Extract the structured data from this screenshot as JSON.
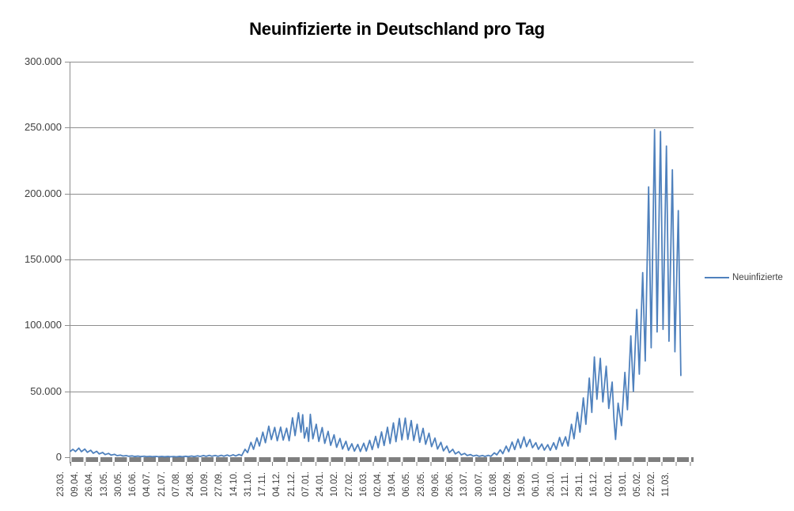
{
  "title": "Neuinfizierte in Deutschland pro Tag",
  "legend": {
    "series_label": "Neuinfizierte"
  },
  "colors": {
    "series": "#4F81BD",
    "gridline": "#8E8E8E",
    "axis_bar": "#7F7F7F",
    "tick_text": "#404040",
    "title_text": "#000000",
    "background": "#FFFFFF"
  },
  "y_axis": {
    "tick_labels": [
      "0",
      "50.000",
      "100.000",
      "150.000",
      "200.000",
      "250.000",
      "300.000"
    ],
    "tick_values": [
      0,
      50000,
      100000,
      150000,
      200000,
      250000,
      300000
    ]
  },
  "x_axis": {
    "tick_labels": [
      "23.03.",
      "09.04.",
      "26.04.",
      "13.05.",
      "30.05.",
      "16.06.",
      "04.07.",
      "21.07.",
      "07.08.",
      "24.08.",
      "10.09.",
      "27.09.",
      "14.10.",
      "31.10.",
      "17.11.",
      "04.12.",
      "21.12.",
      "07.01.",
      "24.01.",
      "10.02.",
      "27.02.",
      "16.03.",
      "02.04.",
      "19.04.",
      "06.05.",
      "23.05.",
      "09.06.",
      "26.06.",
      "13.07.",
      "30.07.",
      "16.08.",
      "02.09.",
      "19.09.",
      "06.10.",
      "26.10.",
      "12.11.",
      "29.11.",
      "16.12.",
      "02.01.",
      "19.01.",
      "05.02.",
      "22.02.",
      "11.03."
    ],
    "tick_interval_days": 17
  },
  "chart_data": {
    "type": "line",
    "title": "Neuinfizierte in Deutschland pro Tag",
    "xlabel": "",
    "ylabel": "",
    "x_unit": "day index, daily values from 23.03.2020 to 13.03.2022",
    "ylim": [
      0,
      300000
    ],
    "xlim_days": [
      0,
      735
    ],
    "grid": true,
    "legend_position": "right",
    "series": [
      {
        "name": "Neuinfizierte",
        "points": [
          [
            0,
            4500
          ],
          [
            3,
            6000
          ],
          [
            6,
            4300
          ],
          [
            10,
            6900
          ],
          [
            13,
            4200
          ],
          [
            17,
            6200
          ],
          [
            20,
            3700
          ],
          [
            24,
            5300
          ],
          [
            27,
            3000
          ],
          [
            31,
            4500
          ],
          [
            34,
            2500
          ],
          [
            38,
            3600
          ],
          [
            41,
            2000
          ],
          [
            45,
            2900
          ],
          [
            48,
            1600
          ],
          [
            52,
            2200
          ],
          [
            55,
            1200
          ],
          [
            59,
            1600
          ],
          [
            62,
            900
          ],
          [
            66,
            1200
          ],
          [
            69,
            700
          ],
          [
            73,
            1000
          ],
          [
            76,
            550
          ],
          [
            80,
            850
          ],
          [
            83,
            480
          ],
          [
            87,
            750
          ],
          [
            90,
            430
          ],
          [
            94,
            680
          ],
          [
            97,
            400
          ],
          [
            101,
            620
          ],
          [
            104,
            380
          ],
          [
            108,
            600
          ],
          [
            111,
            350
          ],
          [
            115,
            560
          ],
          [
            118,
            330
          ],
          [
            122,
            540
          ],
          [
            125,
            320
          ],
          [
            129,
            630
          ],
          [
            132,
            380
          ],
          [
            136,
            720
          ],
          [
            139,
            420
          ],
          [
            143,
            870
          ],
          [
            146,
            480
          ],
          [
            150,
            1050
          ],
          [
            153,
            570
          ],
          [
            157,
            1250
          ],
          [
            160,
            650
          ],
          [
            164,
            1400
          ],
          [
            167,
            720
          ],
          [
            171,
            1320
          ],
          [
            174,
            680
          ],
          [
            178,
            1450
          ],
          [
            181,
            750
          ],
          [
            185,
            1650
          ],
          [
            188,
            850
          ],
          [
            192,
            1850
          ],
          [
            195,
            950
          ],
          [
            199,
            2100
          ],
          [
            202,
            1150
          ],
          [
            206,
            6000
          ],
          [
            209,
            3500
          ],
          [
            213,
            11300
          ],
          [
            216,
            6000
          ],
          [
            220,
            14700
          ],
          [
            223,
            8500
          ],
          [
            227,
            19000
          ],
          [
            230,
            11000
          ],
          [
            234,
            23500
          ],
          [
            237,
            13400
          ],
          [
            241,
            22600
          ],
          [
            244,
            12500
          ],
          [
            248,
            22800
          ],
          [
            251,
            13000
          ],
          [
            255,
            22000
          ],
          [
            258,
            12500
          ],
          [
            262,
            29900
          ],
          [
            265,
            16400
          ],
          [
            269,
            33700
          ],
          [
            272,
            19000
          ],
          [
            274,
            32200
          ],
          [
            276,
            14500
          ],
          [
            279,
            22500
          ],
          [
            281,
            12000
          ],
          [
            283,
            32500
          ],
          [
            286,
            14000
          ],
          [
            290,
            25000
          ],
          [
            293,
            12000
          ],
          [
            297,
            22500
          ],
          [
            300,
            10500
          ],
          [
            304,
            19600
          ],
          [
            307,
            9000
          ],
          [
            311,
            17000
          ],
          [
            314,
            7500
          ],
          [
            318,
            14200
          ],
          [
            321,
            6200
          ],
          [
            325,
            12100
          ],
          [
            328,
            5200
          ],
          [
            332,
            10200
          ],
          [
            335,
            4600
          ],
          [
            339,
            9700
          ],
          [
            342,
            4300
          ],
          [
            346,
            10600
          ],
          [
            349,
            4700
          ],
          [
            353,
            12800
          ],
          [
            356,
            5800
          ],
          [
            360,
            15800
          ],
          [
            363,
            7200
          ],
          [
            367,
            19200
          ],
          [
            370,
            8900
          ],
          [
            374,
            22700
          ],
          [
            377,
            10400
          ],
          [
            381,
            26000
          ],
          [
            384,
            11800
          ],
          [
            388,
            29400
          ],
          [
            391,
            13200
          ],
          [
            395,
            29700
          ],
          [
            398,
            13500
          ],
          [
            402,
            27800
          ],
          [
            405,
            12700
          ],
          [
            409,
            25000
          ],
          [
            412,
            11300
          ],
          [
            416,
            21900
          ],
          [
            419,
            9800
          ],
          [
            423,
            18200
          ],
          [
            426,
            8000
          ],
          [
            430,
            14500
          ],
          [
            433,
            6200
          ],
          [
            437,
            11300
          ],
          [
            440,
            4800
          ],
          [
            444,
            8400
          ],
          [
            447,
            3500
          ],
          [
            451,
            6000
          ],
          [
            454,
            2500
          ],
          [
            458,
            4200
          ],
          [
            461,
            1750
          ],
          [
            465,
            2900
          ],
          [
            468,
            1250
          ],
          [
            472,
            2000
          ],
          [
            475,
            900
          ],
          [
            479,
            1500
          ],
          [
            482,
            700
          ],
          [
            486,
            1300
          ],
          [
            489,
            620
          ],
          [
            493,
            1400
          ],
          [
            496,
            680
          ],
          [
            500,
            3300
          ],
          [
            503,
            1800
          ],
          [
            507,
            5600
          ],
          [
            510,
            2700
          ],
          [
            514,
            8400
          ],
          [
            517,
            4200
          ],
          [
            521,
            11500
          ],
          [
            524,
            5800
          ],
          [
            528,
            13700
          ],
          [
            531,
            7000
          ],
          [
            535,
            15400
          ],
          [
            538,
            8000
          ],
          [
            542,
            13500
          ],
          [
            545,
            7200
          ],
          [
            549,
            11000
          ],
          [
            552,
            6000
          ],
          [
            556,
            10000
          ],
          [
            559,
            5400
          ],
          [
            563,
            9500
          ],
          [
            566,
            5200
          ],
          [
            570,
            11000
          ],
          [
            573,
            6000
          ],
          [
            577,
            15000
          ],
          [
            580,
            8500
          ],
          [
            584,
            15500
          ],
          [
            587,
            8500
          ],
          [
            591,
            25000
          ],
          [
            594,
            14000
          ],
          [
            598,
            34000
          ],
          [
            601,
            19000
          ],
          [
            605,
            45000
          ],
          [
            608,
            25000
          ],
          [
            612,
            60000
          ],
          [
            615,
            34000
          ],
          [
            618,
            76000
          ],
          [
            621,
            44000
          ],
          [
            625,
            75000
          ],
          [
            628,
            42000
          ],
          [
            632,
            69000
          ],
          [
            635,
            37000
          ],
          [
            639,
            57000
          ],
          [
            641,
            30000
          ],
          [
            643,
            13500
          ],
          [
            646,
            41000
          ],
          [
            650,
            24000
          ],
          [
            654,
            64300
          ],
          [
            657,
            36000
          ],
          [
            661,
            92000
          ],
          [
            664,
            50000
          ],
          [
            668,
            112000
          ],
          [
            671,
            63000
          ],
          [
            675,
            140000
          ],
          [
            678,
            73000
          ],
          [
            682,
            205000
          ],
          [
            685,
            83000
          ],
          [
            689,
            248500
          ],
          [
            692,
            95000
          ],
          [
            696,
            247000
          ],
          [
            699,
            97000
          ],
          [
            703,
            236000
          ],
          [
            706,
            88000
          ],
          [
            710,
            218000
          ],
          [
            713,
            80000
          ],
          [
            717,
            187000
          ],
          [
            720,
            62000
          ]
        ]
      }
    ]
  }
}
